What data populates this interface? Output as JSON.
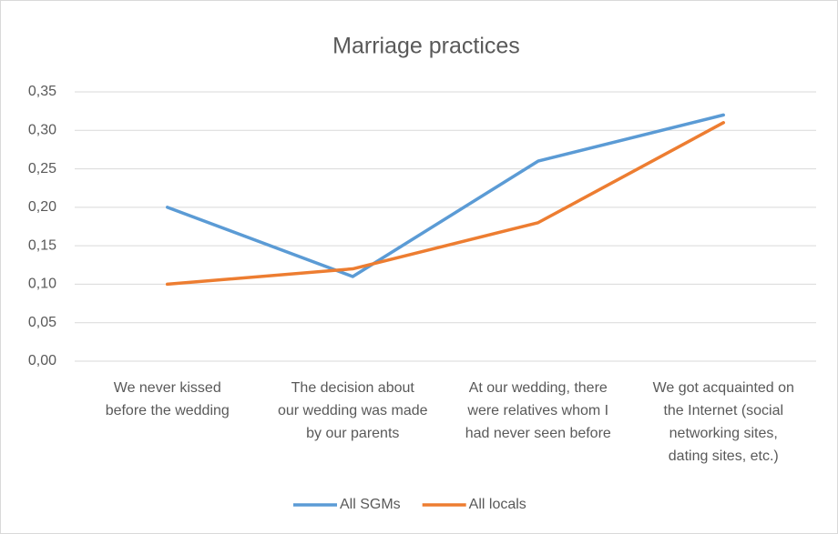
{
  "chart_data": {
    "type": "line",
    "title": "Marriage practices",
    "categories": [
      "We never kissed before the wedding",
      "The decision about our wedding was made by our parents",
      "At our wedding, there were relatives whom I had never seen before",
      "We got acquainted on the Internet (social networking sites, dating sites, etc.)"
    ],
    "series": [
      {
        "name": "All SGMs",
        "color": "#5b9bd5",
        "values": [
          0.2,
          0.11,
          0.26,
          0.32
        ]
      },
      {
        "name": "All locals",
        "color": "#ed7d31",
        "values": [
          0.1,
          0.12,
          0.18,
          0.31
        ]
      }
    ],
    "ylim": [
      0,
      0.35
    ],
    "yticks": [
      {
        "value": 0,
        "label": "0,00"
      },
      {
        "value": 0.05,
        "label": "0,05"
      },
      {
        "value": 0.1,
        "label": "0,10"
      },
      {
        "value": 0.15,
        "label": "0,15"
      },
      {
        "value": 0.2,
        "label": "0,20"
      },
      {
        "value": 0.25,
        "label": "0,25"
      },
      {
        "value": 0.3,
        "label": "0,30"
      },
      {
        "value": 0.35,
        "label": "0,35"
      }
    ],
    "grid": true,
    "legend": "bottom"
  }
}
